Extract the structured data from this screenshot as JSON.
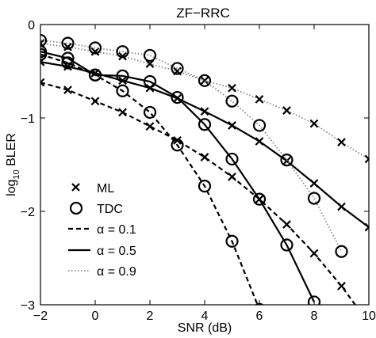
{
  "chart_data": {
    "type": "line",
    "title": "ZF−RRC",
    "xlabel": "SNR (dB)",
    "ylabel_main": "log",
    "ylabel_sub": "10",
    "ylabel_rest": " BLER",
    "xlim": [
      -2,
      10
    ],
    "ylim": [
      -3,
      0
    ],
    "xticks": [
      -2,
      0,
      2,
      4,
      6,
      8,
      10
    ],
    "xtick_labels": [
      "−2",
      "0",
      "2",
      "4",
      "6",
      "8",
      "10"
    ],
    "yticks": [
      -3,
      -2,
      -1,
      0
    ],
    "ytick_labels": [
      "−3",
      "−2",
      "−1",
      "0"
    ],
    "grid": false,
    "legend_position": "lower-left",
    "legend": {
      "marker_entries": [
        {
          "marker": "x",
          "label": "ML"
        },
        {
          "marker": "o",
          "label": "TDC"
        }
      ],
      "line_entries": [
        {
          "style": "dashed",
          "label": "α = 0.1"
        },
        {
          "style": "solid",
          "label": "α = 0.5"
        },
        {
          "style": "dotted",
          "label": "α = 0.9"
        }
      ]
    },
    "series": [
      {
        "alpha": "0.1",
        "style": "dashed",
        "method": "ML",
        "marker": "x",
        "x": [
          -2,
          -1,
          0,
          1,
          2,
          3,
          4,
          5,
          6,
          7,
          8,
          9,
          10
        ],
        "y": [
          -0.62,
          -0.7,
          -0.82,
          -0.94,
          -1.09,
          -1.24,
          -1.42,
          -1.63,
          -1.87,
          -2.14,
          -2.45,
          -2.8,
          -3.2
        ]
      },
      {
        "alpha": "0.1",
        "style": "dashed",
        "method": "TDC",
        "marker": "o",
        "x": [
          -2,
          -1,
          0,
          1,
          2,
          3,
          4,
          5,
          6
        ],
        "y": [
          -0.32,
          -0.41,
          -0.54,
          -0.71,
          -0.94,
          -1.29,
          -1.73,
          -2.32,
          -3.05
        ]
      },
      {
        "alpha": "0.5",
        "style": "solid",
        "method": "ML",
        "marker": "x",
        "x": [
          -2,
          -1,
          0,
          1,
          2,
          3,
          4,
          5,
          6,
          7,
          8,
          9,
          10
        ],
        "y": [
          -0.4,
          -0.45,
          -0.52,
          -0.6,
          -0.68,
          -0.79,
          -0.93,
          -1.08,
          -1.25,
          -1.46,
          -1.7,
          -1.95,
          -2.17
        ]
      },
      {
        "alpha": "0.5",
        "style": "solid",
        "method": "TDC",
        "marker": "o",
        "x": [
          -2,
          -1,
          0,
          1,
          2,
          3,
          4,
          5,
          6,
          7,
          8
        ],
        "y": [
          -0.29,
          -0.36,
          -0.54,
          -0.55,
          -0.61,
          -0.78,
          -1.07,
          -1.44,
          -1.87,
          -2.36,
          -2.97
        ]
      },
      {
        "alpha": "0.9",
        "style": "dotted",
        "method": "ML",
        "marker": "x",
        "x": [
          -2,
          -1,
          0,
          1,
          2,
          3,
          4,
          5,
          6,
          7,
          8,
          9,
          10
        ],
        "y": [
          -0.2,
          -0.24,
          -0.29,
          -0.34,
          -0.42,
          -0.5,
          -0.6,
          -0.68,
          -0.8,
          -0.92,
          -1.06,
          -1.26,
          -1.44
        ]
      },
      {
        "alpha": "0.9",
        "style": "dotted",
        "method": "TDC",
        "marker": "o",
        "x": [
          -2,
          -1,
          0,
          1,
          2,
          3,
          4,
          5,
          6,
          7,
          8,
          9
        ],
        "y": [
          -0.17,
          -0.2,
          -0.25,
          -0.29,
          -0.33,
          -0.47,
          -0.6,
          -0.82,
          -1.08,
          -1.45,
          -1.86,
          -2.43
        ]
      }
    ]
  }
}
